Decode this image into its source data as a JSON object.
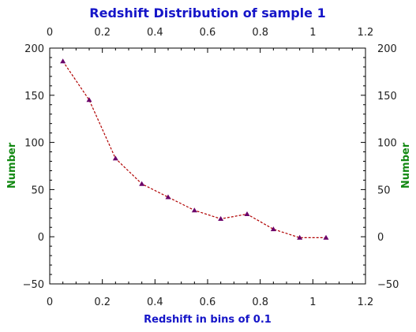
{
  "chart_data": {
    "type": "line",
    "title": "Redshift Distribution of sample 1",
    "xlabel": "Redshift in bins of 0.1",
    "ylabel": "Number",
    "y2label": "Number",
    "xlim": [
      0,
      1.2
    ],
    "ylim": [
      -50,
      200
    ],
    "xticks": [
      0,
      0.2,
      0.4,
      0.6,
      0.8,
      1,
      1.2
    ],
    "xtick_labels": [
      "0",
      "0.2",
      "0.4",
      "0.6",
      "0.8",
      "1",
      "1.2"
    ],
    "yticks": [
      -50,
      0,
      50,
      100,
      150,
      200
    ],
    "ytick_labels": [
      "−50",
      "0",
      "50",
      "100",
      "150",
      "200"
    ],
    "grid": false,
    "series": [
      {
        "x": [
          0.05,
          0.15,
          0.25,
          0.35,
          0.45,
          0.55,
          0.65,
          0.75,
          0.85,
          0.95,
          1.05
        ],
        "y": [
          186,
          145,
          83,
          56,
          42,
          28,
          19,
          24,
          8,
          -1,
          -1
        ],
        "line_color": "#b00000",
        "marker_color": "#6a006a",
        "marker": "triangle",
        "line_style": "dashed"
      }
    ]
  }
}
